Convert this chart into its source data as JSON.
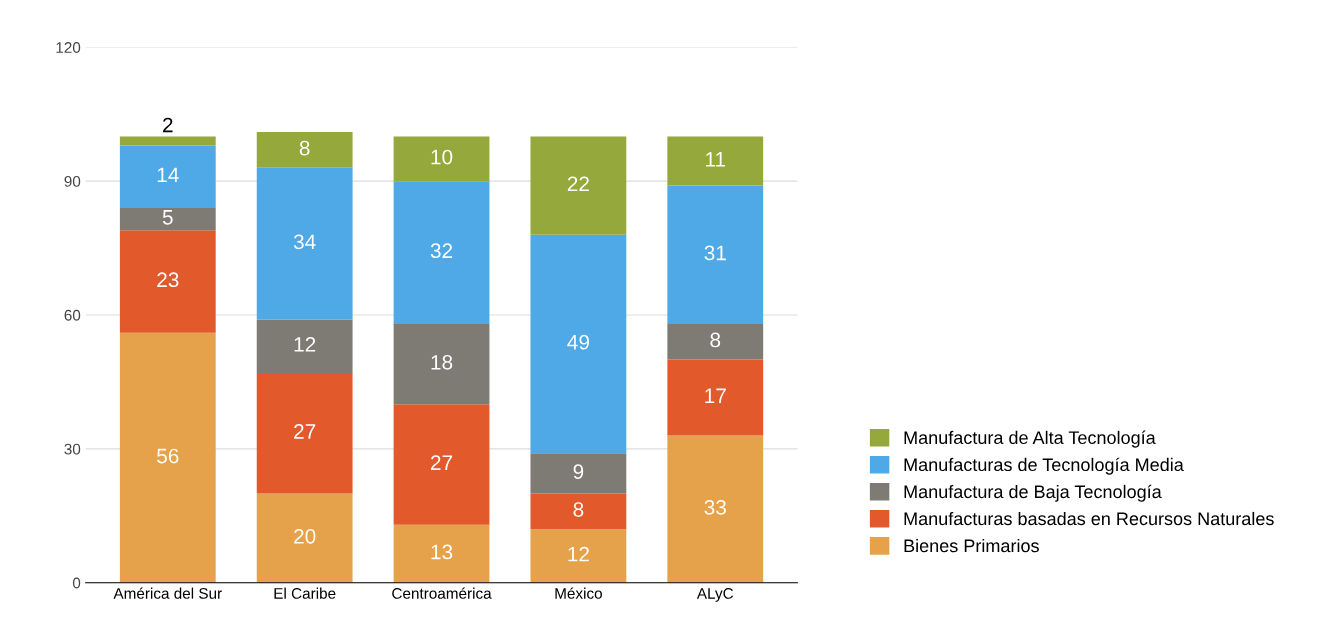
{
  "chart_data": {
    "type": "bar",
    "stacked": true,
    "data_labels": true,
    "grid": "y",
    "legend": "right",
    "categories": [
      "América del Sur",
      "El Caribe",
      "Centroamérica",
      "México",
      "ALyC"
    ],
    "ylim": [
      0,
      120
    ],
    "yticks": [
      0,
      30,
      60,
      90,
      120
    ],
    "series": [
      {
        "name": "Bienes Primarios",
        "color": "#e5a24a",
        "values": [
          56,
          20,
          13,
          12,
          33
        ]
      },
      {
        "name": "Manufacturas basadas en Recursos Naturales",
        "color": "#e25a2c",
        "values": [
          23,
          27,
          27,
          8,
          17
        ]
      },
      {
        "name": "Manufactura de Baja Tecnología",
        "color": "#7d7b74",
        "values": [
          5,
          12,
          18,
          9,
          8
        ]
      },
      {
        "name": "Manufacturas de Tecnología Media",
        "color": "#4ea9e6",
        "values": [
          14,
          34,
          32,
          49,
          31
        ]
      },
      {
        "name": "Manufactura de Alta Tecnología",
        "color": "#94a83c",
        "values": [
          2,
          8,
          10,
          22,
          11
        ]
      }
    ]
  }
}
